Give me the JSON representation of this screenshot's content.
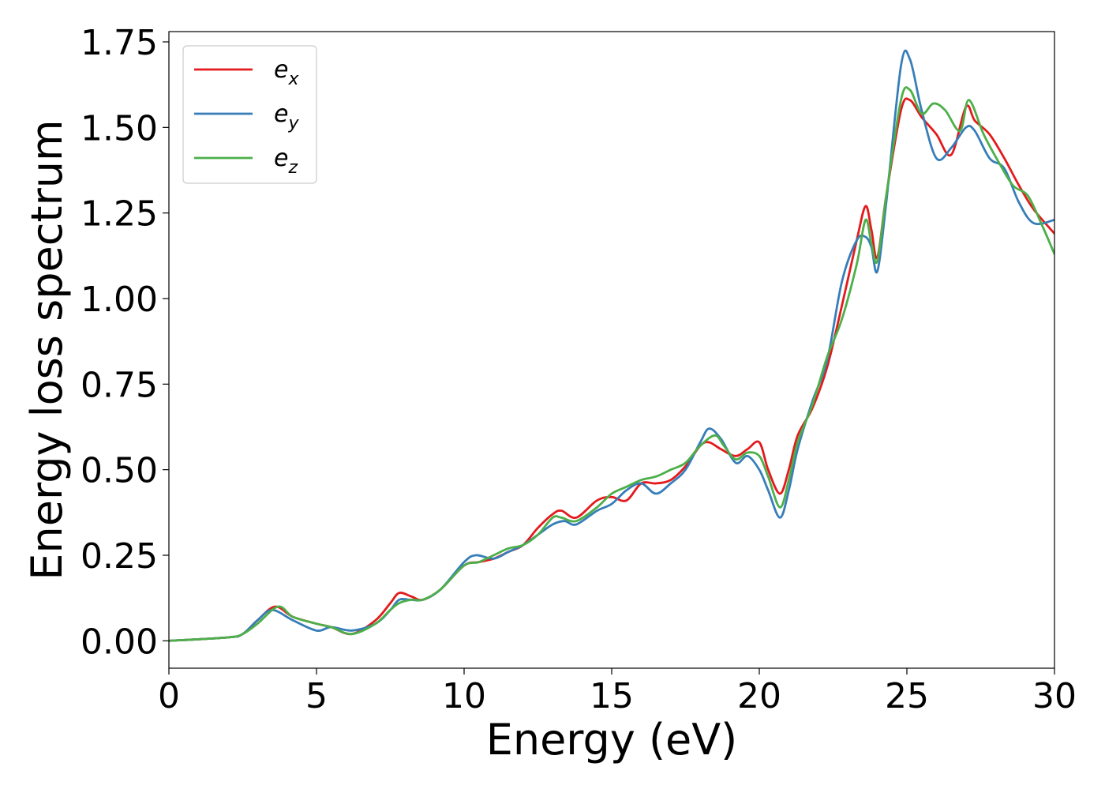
{
  "chart_data": {
    "type": "line",
    "title": "",
    "xlabel": "Energy (eV)",
    "ylabel": "Energy loss spectrum",
    "xlim": [
      0,
      30
    ],
    "ylim": [
      -0.08,
      1.78
    ],
    "xticks": [
      0,
      5,
      10,
      15,
      20,
      25,
      30
    ],
    "xtick_labels": [
      "0",
      "5",
      "10",
      "15",
      "20",
      "25",
      "30"
    ],
    "yticks": [
      0.0,
      0.25,
      0.5,
      0.75,
      1.0,
      1.25,
      1.5,
      1.75
    ],
    "ytick_labels": [
      "0.00",
      "0.25",
      "0.50",
      "0.75",
      "1.00",
      "1.25",
      "1.50",
      "1.75"
    ],
    "grid": false,
    "legend_position": "top-left",
    "series": [
      {
        "name": "e_x",
        "label_main": "e",
        "label_sub": "x",
        "color": "#e41a1c",
        "x": [
          0,
          2,
          2.5,
          3.0,
          3.6,
          4.2,
          5.0,
          5.5,
          6.2,
          7.0,
          7.5,
          7.8,
          8.2,
          8.6,
          9.2,
          10.0,
          10.5,
          11.0,
          11.5,
          12.0,
          12.5,
          13.0,
          13.3,
          13.8,
          14.5,
          15.0,
          15.5,
          16.0,
          16.5,
          17.0,
          17.5,
          18.0,
          18.3,
          18.7,
          19.2,
          19.6,
          20.0,
          20.3,
          20.7,
          21.0,
          21.3,
          21.8,
          22.3,
          22.8,
          23.3,
          23.6,
          23.8,
          24.0,
          24.3,
          24.8,
          25.1,
          25.5,
          26.0,
          26.5,
          27.0,
          27.3,
          27.8,
          28.3,
          28.8,
          29.3,
          30.0
        ],
        "y": [
          0.0,
          0.01,
          0.02,
          0.06,
          0.1,
          0.07,
          0.05,
          0.04,
          0.02,
          0.06,
          0.11,
          0.14,
          0.13,
          0.12,
          0.15,
          0.22,
          0.23,
          0.24,
          0.26,
          0.28,
          0.33,
          0.37,
          0.38,
          0.36,
          0.41,
          0.42,
          0.41,
          0.46,
          0.46,
          0.47,
          0.51,
          0.57,
          0.58,
          0.56,
          0.54,
          0.56,
          0.58,
          0.5,
          0.43,
          0.5,
          0.6,
          0.68,
          0.8,
          0.98,
          1.17,
          1.27,
          1.2,
          1.12,
          1.3,
          1.55,
          1.58,
          1.53,
          1.48,
          1.42,
          1.56,
          1.52,
          1.48,
          1.41,
          1.33,
          1.26,
          1.19
        ]
      },
      {
        "name": "e_y",
        "label_main": "e",
        "label_sub": "y",
        "color": "#377eb8",
        "x": [
          0,
          2,
          2.5,
          3.0,
          3.5,
          4.2,
          5.0,
          5.5,
          6.2,
          7.0,
          7.5,
          7.8,
          8.2,
          8.6,
          9.2,
          10.0,
          10.4,
          11.0,
          11.5,
          12.0,
          12.5,
          13.0,
          13.4,
          13.8,
          14.5,
          15.0,
          15.5,
          16.0,
          16.5,
          17.0,
          17.5,
          18.0,
          18.3,
          18.7,
          19.2,
          19.6,
          20.0,
          20.3,
          20.7,
          21.0,
          21.3,
          21.8,
          22.3,
          22.8,
          23.3,
          23.6,
          23.8,
          24.0,
          24.3,
          24.8,
          25.1,
          25.5,
          26.0,
          26.5,
          27.0,
          27.3,
          27.8,
          28.3,
          28.8,
          29.3,
          30.0
        ],
        "y": [
          0.0,
          0.01,
          0.02,
          0.06,
          0.09,
          0.06,
          0.03,
          0.04,
          0.03,
          0.05,
          0.09,
          0.12,
          0.12,
          0.12,
          0.15,
          0.23,
          0.25,
          0.24,
          0.26,
          0.28,
          0.31,
          0.34,
          0.35,
          0.34,
          0.38,
          0.4,
          0.44,
          0.46,
          0.43,
          0.46,
          0.5,
          0.58,
          0.62,
          0.59,
          0.52,
          0.54,
          0.5,
          0.44,
          0.36,
          0.44,
          0.56,
          0.7,
          0.82,
          1.05,
          1.17,
          1.18,
          1.15,
          1.08,
          1.28,
          1.68,
          1.7,
          1.55,
          1.41,
          1.44,
          1.5,
          1.49,
          1.41,
          1.38,
          1.28,
          1.22,
          1.23
        ]
      },
      {
        "name": "e_z",
        "label_main": "e",
        "label_sub": "z",
        "color": "#4daf4a",
        "x": [
          0,
          2,
          2.5,
          3.0,
          3.7,
          4.2,
          5.0,
          5.5,
          6.2,
          7.0,
          7.5,
          7.8,
          8.2,
          8.6,
          9.2,
          10.0,
          10.5,
          11.0,
          11.5,
          12.0,
          12.5,
          13.0,
          13.3,
          13.8,
          14.5,
          15.0,
          15.5,
          16.0,
          16.5,
          17.0,
          17.5,
          18.0,
          18.5,
          18.8,
          19.2,
          19.6,
          20.0,
          20.3,
          20.7,
          21.0,
          21.3,
          21.8,
          22.3,
          22.8,
          23.3,
          23.6,
          23.8,
          24.0,
          24.3,
          24.8,
          25.1,
          25.5,
          25.9,
          26.3,
          26.8,
          27.1,
          27.6,
          28.1,
          28.6,
          29.1,
          29.6,
          30.0
        ],
        "y": [
          0.0,
          0.01,
          0.02,
          0.05,
          0.1,
          0.07,
          0.05,
          0.04,
          0.02,
          0.05,
          0.09,
          0.11,
          0.12,
          0.12,
          0.15,
          0.22,
          0.23,
          0.25,
          0.27,
          0.28,
          0.31,
          0.36,
          0.36,
          0.35,
          0.39,
          0.43,
          0.45,
          0.47,
          0.48,
          0.5,
          0.52,
          0.57,
          0.6,
          0.57,
          0.53,
          0.55,
          0.54,
          0.48,
          0.39,
          0.47,
          0.58,
          0.69,
          0.83,
          0.94,
          1.1,
          1.23,
          1.16,
          1.11,
          1.3,
          1.58,
          1.61,
          1.54,
          1.57,
          1.55,
          1.49,
          1.58,
          1.48,
          1.4,
          1.33,
          1.3,
          1.21,
          1.13
        ]
      }
    ]
  }
}
